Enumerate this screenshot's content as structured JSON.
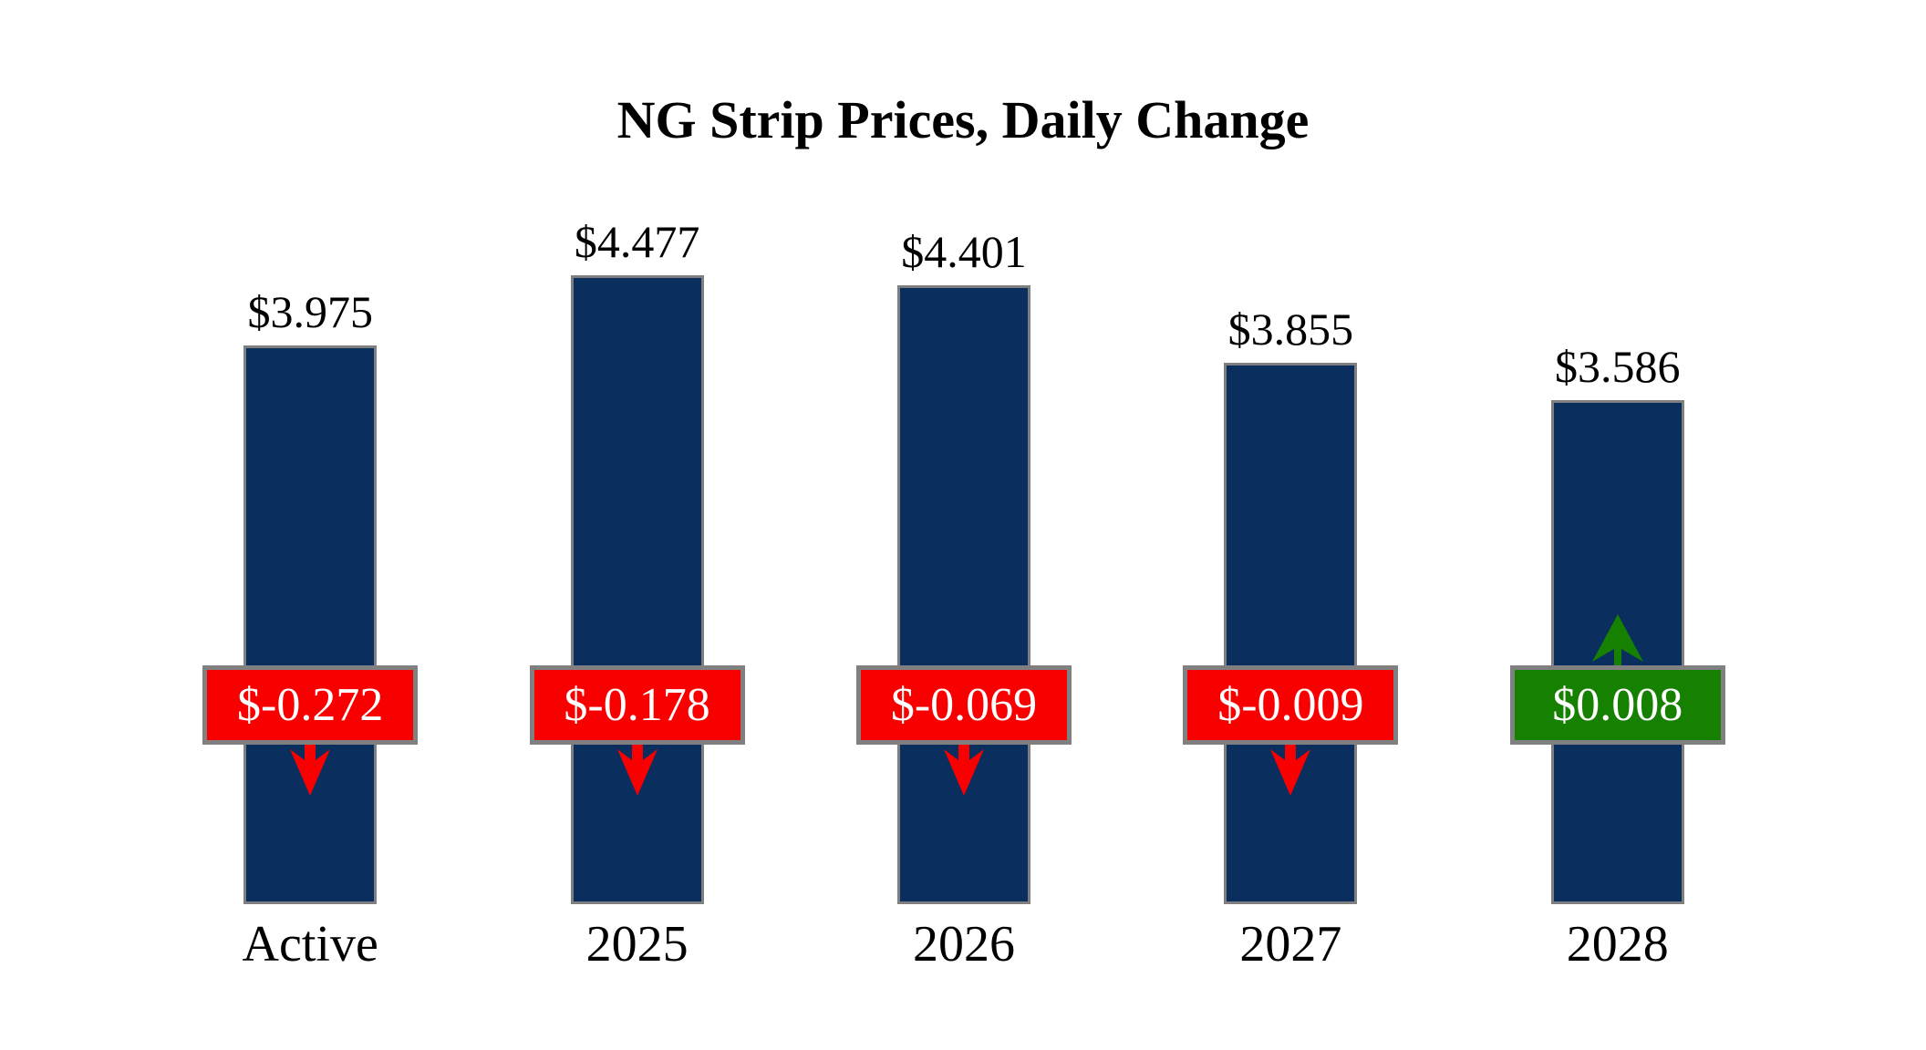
{
  "chart_data": {
    "type": "bar",
    "title": "NG Strip Prices, Daily Change",
    "categories": [
      "Active",
      "2025",
      "2026",
      "2027",
      "2028"
    ],
    "values": [
      3.975,
      4.477,
      4.401,
      3.855,
      3.586
    ],
    "bar_labels": [
      "$3.975",
      "$4.477",
      "$4.401",
      "$3.855",
      "$3.586"
    ],
    "daily_changes": [
      -0.272,
      -0.178,
      -0.069,
      -0.009,
      0.008
    ],
    "change_labels": [
      "$-0.272",
      "$-0.178",
      "$-0.069",
      "$-0.009",
      "$0.008"
    ],
    "change_directions": [
      "down",
      "down",
      "down",
      "down",
      "up"
    ],
    "ylim": [
      0,
      4.477
    ],
    "grid": false,
    "legend": "none",
    "axes_visible": false,
    "colors": {
      "bar_fill": "#0A2E5E",
      "bar_border": "#7F7F7F",
      "negative_badge": "#F90000",
      "positive_badge": "#168000",
      "badge_border": "#808080",
      "badge_text": "#FFFFFF",
      "label_text": "#000000"
    }
  }
}
